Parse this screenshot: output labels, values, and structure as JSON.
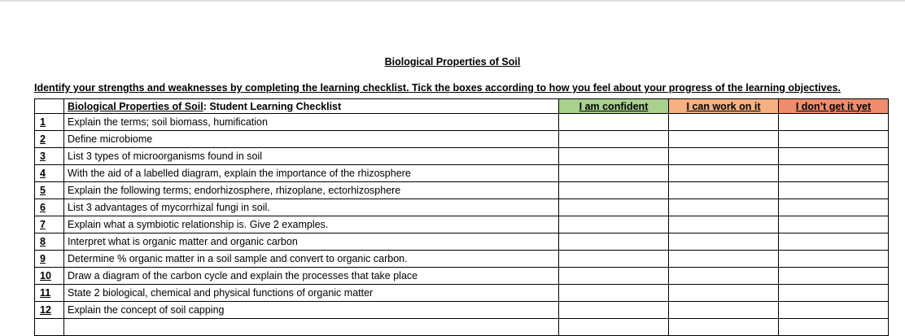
{
  "title": "Biological Properties of Soil",
  "instructions": "Identify your strengths and weaknesses by completing the learning checklist. Tick the boxes according to how you feel about your progress of the learning objectives.",
  "table": {
    "header_topic": "Biological Properties of Soil",
    "header_rest": ": Student Learning Checklist",
    "columns": [
      {
        "label": "I am confident",
        "color": "#a9d18e"
      },
      {
        "label": "I can work on it",
        "color": "#f4b183"
      },
      {
        "label": "I don’t get it yet",
        "color": "#f08c6e"
      }
    ],
    "rows": [
      {
        "num": "1",
        "text": "Explain the terms; soil biomass, humification"
      },
      {
        "num": "2",
        "text": "Define microbiome"
      },
      {
        "num": "3",
        "text": "List 3 types of microorganisms found in soil"
      },
      {
        "num": "4",
        "text": "With the aid of a labelled diagram, explain the importance of the rhizosphere"
      },
      {
        "num": "5",
        "text": "Explain the following terms; endorhizosphere, rhizoplane, ectorhizosphere"
      },
      {
        "num": "6",
        "text": "List 3 advantages of mycorrhizal fungi in soil."
      },
      {
        "num": "7",
        "text": "Explain what a symbiotic relationship is. Give 2 examples."
      },
      {
        "num": "8",
        "text": "Interpret what is organic matter and organic carbon"
      },
      {
        "num": "9",
        "text": "Determine % organic matter in a soil sample and convert to organic carbon."
      },
      {
        "num": "10",
        "text": "Draw a diagram of the carbon cycle and explain the processes that take place"
      },
      {
        "num": "11",
        "text": "State 2 biological, chemical and physical functions of organic matter"
      },
      {
        "num": "12",
        "text": "Explain the concept of soil capping"
      }
    ]
  }
}
